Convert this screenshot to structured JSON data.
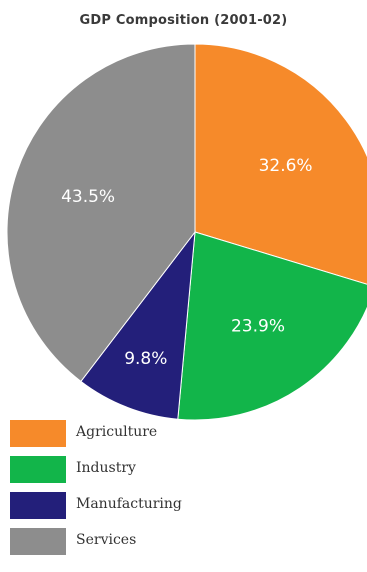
{
  "chart_data": {
    "type": "pie",
    "title": "GDP Composition (2001-02)",
    "slices": [
      {
        "name": "Agriculture",
        "value": 32.6,
        "label": "32.6%",
        "color": "#f68a2a"
      },
      {
        "name": "Industry",
        "value": 23.9,
        "label": "23.9%",
        "color": "#12b54a"
      },
      {
        "name": "Manufacturing",
        "value": 9.8,
        "label": "9.8%",
        "color": "#231f7a"
      },
      {
        "name": "Services",
        "value": 43.5,
        "label": "43.5%",
        "color": "#8d8d8d"
      }
    ],
    "start_angle_deg": 0,
    "direction": "clockwise",
    "legend_position": "bottom-left"
  }
}
